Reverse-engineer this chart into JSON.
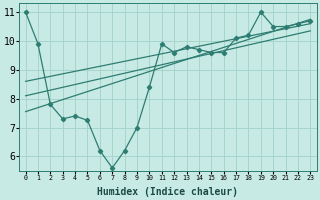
{
  "xlabel": "Humidex (Indice chaleur)",
  "xlim": [
    -0.5,
    23.5
  ],
  "ylim": [
    5.5,
    11.3
  ],
  "xtick_labels": [
    "0",
    "1",
    "2",
    "3",
    "4",
    "5",
    "6",
    "7",
    "8",
    "9",
    "10",
    "11",
    "12",
    "13",
    "14",
    "15",
    "16",
    "17",
    "18",
    "19",
    "20",
    "21",
    "22",
    "23"
  ],
  "ytick_values": [
    6,
    7,
    8,
    9,
    10,
    11
  ],
  "bg_color": "#c8eae4",
  "grid_color": "#a8d4ce",
  "line_color": "#2e7d72",
  "main_line": {
    "x": [
      0,
      1,
      2,
      3,
      4,
      5,
      6,
      7,
      8,
      9,
      10,
      11,
      12,
      13,
      14,
      15,
      16,
      17,
      18,
      19,
      20,
      21,
      22,
      23
    ],
    "y": [
      11.0,
      9.9,
      7.8,
      7.3,
      7.4,
      7.25,
      6.2,
      5.6,
      6.2,
      7.0,
      8.4,
      9.9,
      9.6,
      9.8,
      9.7,
      9.6,
      9.6,
      10.1,
      10.2,
      11.0,
      10.5,
      10.5,
      10.6,
      10.7
    ]
  },
  "straight_lines": [
    {
      "x0": 0,
      "y0": 7.55,
      "x1": 23,
      "y1": 10.75
    },
    {
      "x0": 0,
      "y0": 8.1,
      "x1": 23,
      "y1": 10.35
    },
    {
      "x0": 0,
      "y0": 8.6,
      "x1": 23,
      "y1": 10.6
    }
  ]
}
